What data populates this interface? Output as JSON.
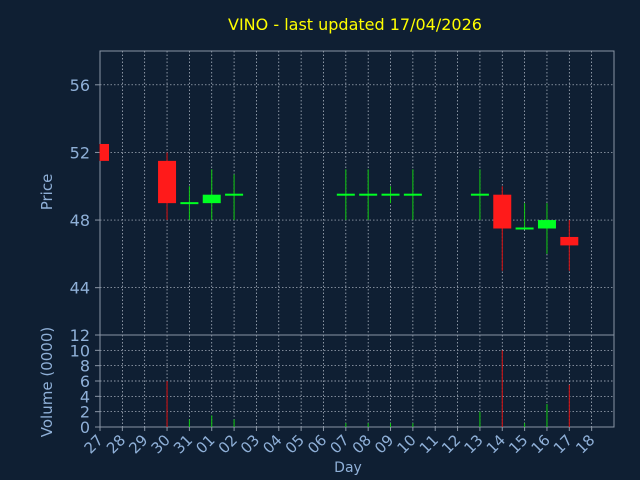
{
  "chart_data": {
    "type": "candlestick",
    "title": "VINO - last updated 17/04/2026",
    "xlabel": "Day",
    "price_panel": {
      "ylabel": "Price",
      "ylim": [
        41.2,
        58
      ],
      "yticks": [
        "44",
        "48",
        "52",
        "56"
      ],
      "grid": true
    },
    "volume_panel": {
      "ylabel": "Volume (0000)",
      "ylim": [
        0,
        12
      ],
      "yticks": [
        "0",
        "2",
        "4",
        "6",
        "8",
        "10",
        "12"
      ],
      "grid": true
    },
    "categories": [
      "27",
      "28",
      "29",
      "30",
      "31",
      "01",
      "02",
      "03",
      "04",
      "05",
      "06",
      "07",
      "08",
      "09",
      "10",
      "11",
      "12",
      "13",
      "14",
      "15",
      "16",
      "17",
      "18"
    ],
    "candles": [
      {
        "day": "27",
        "open": 52.5,
        "high": 52.5,
        "low": 51.5,
        "close": 51.5,
        "volume": 0
      },
      {
        "day": "30",
        "open": 51.5,
        "high": 52.0,
        "low": 48.0,
        "close": 49.0,
        "volume": 6
      },
      {
        "day": "31",
        "open": 49.0,
        "high": 50.0,
        "low": 48.0,
        "close": 49.0,
        "volume": 1
      },
      {
        "day": "01",
        "open": 49.0,
        "high": 51.0,
        "low": 48.0,
        "close": 49.5,
        "volume": 1.5
      },
      {
        "day": "02",
        "open": 49.5,
        "high": 50.7,
        "low": 48.0,
        "close": 49.5,
        "volume": 1
      },
      {
        "day": "07",
        "open": 49.5,
        "high": 51.0,
        "low": 48.0,
        "close": 49.5,
        "volume": 0.5
      },
      {
        "day": "08",
        "open": 49.5,
        "high": 51.0,
        "low": 48.0,
        "close": 49.5,
        "volume": 0.5
      },
      {
        "day": "09",
        "open": 49.5,
        "high": 50.0,
        "low": 49.0,
        "close": 49.5,
        "volume": 0.5
      },
      {
        "day": "10",
        "open": 49.5,
        "high": 51.0,
        "low": 48.0,
        "close": 49.5,
        "volume": 0.5
      },
      {
        "day": "13",
        "open": 49.5,
        "high": 51.0,
        "low": 48.0,
        "close": 49.5,
        "volume": 2
      },
      {
        "day": "14",
        "open": 49.5,
        "high": 50.0,
        "low": 45.0,
        "close": 47.5,
        "volume": 10
      },
      {
        "day": "15",
        "open": 47.5,
        "high": 49.0,
        "low": 47.5,
        "close": 47.5,
        "volume": 0.5
      },
      {
        "day": "16",
        "open": 47.5,
        "high": 49.0,
        "low": 46.0,
        "close": 48.0,
        "volume": 3
      },
      {
        "day": "17",
        "open": 47.0,
        "high": 48.0,
        "low": 45.0,
        "close": 46.5,
        "volume": 5.5
      }
    ]
  },
  "colors": {
    "background": "#0f1f33",
    "axis": "#8a96a6",
    "grid": "#c0c8d4",
    "tick_text": "#8fb0d8",
    "title": "#ffff00",
    "up": "#00ff22",
    "down": "#ff1a1a",
    "up_wick": "#11cc11",
    "down_wick": "#dd1111"
  }
}
